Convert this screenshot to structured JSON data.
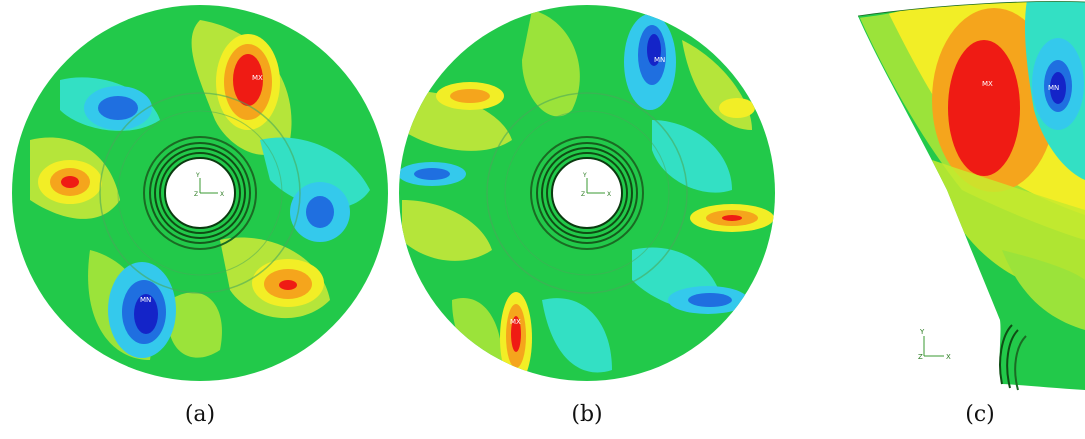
{
  "panels": [
    {
      "caption": "(a)",
      "max_label": "MX",
      "min_label": "MN"
    },
    {
      "caption": "(b)",
      "max_label": "MX",
      "min_label": "MN"
    },
    {
      "caption": "(c)",
      "max_label": "MX",
      "min_label": "MN"
    }
  ],
  "triad": {
    "y": "Y",
    "z": "Z",
    "x": "X"
  },
  "colors": {
    "background": "#ffffff",
    "base": "#22c94a",
    "light_green": "#9be33a",
    "yellow_green": "#c8ea2e",
    "cyan": "#33e0c4",
    "light_blue": "#34c9ec",
    "blue": "#1f6fe0",
    "dark_blue": "#1424c8",
    "yellow": "#f2ee26",
    "orange": "#f5a51c",
    "red": "#ef1b14"
  }
}
